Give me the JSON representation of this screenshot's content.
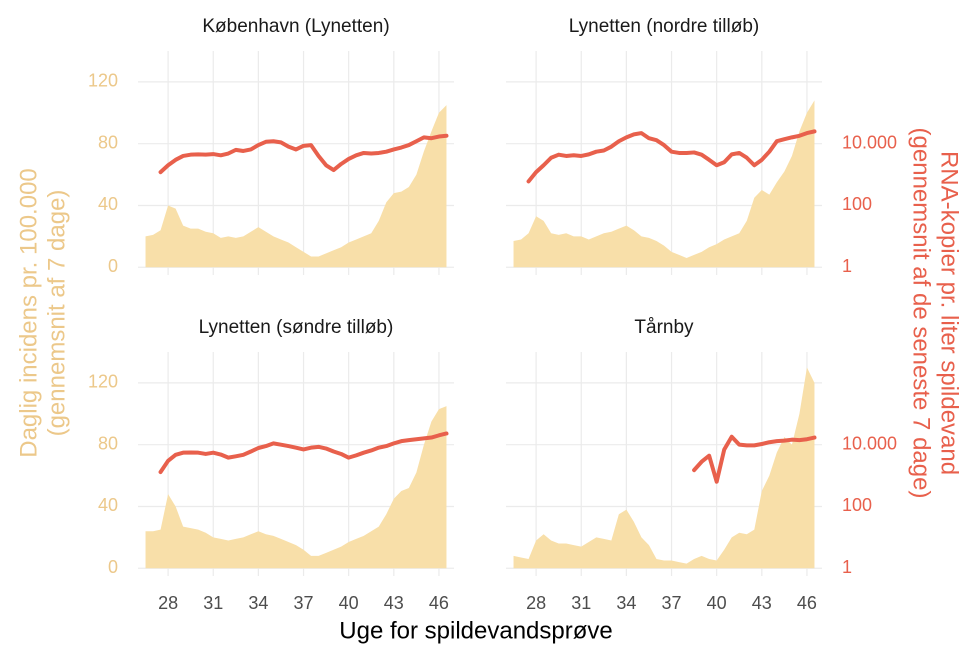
{
  "chart_data": [
    {
      "type": "area-line",
      "title": "København (Lynetten)",
      "x": [
        26.5,
        27,
        27.5,
        28,
        28.5,
        29,
        29.5,
        30,
        30.5,
        31,
        31.5,
        32,
        32.5,
        33,
        33.5,
        34,
        34.5,
        35,
        35.5,
        36,
        36.5,
        37,
        37.5,
        38,
        38.5,
        39,
        39.5,
        40,
        40.5,
        41,
        41.5,
        42,
        42.5,
        43,
        43.5,
        44,
        44.5,
        45,
        45.5,
        46,
        46.5
      ],
      "xlim": [
        26,
        47
      ],
      "xticks": [
        28,
        31,
        34,
        37,
        40,
        43,
        46
      ],
      "ylim": [
        -5,
        140
      ],
      "yticks": [
        0,
        40,
        80,
        120
      ],
      "y2lim": [
        0.56,
        10000000
      ],
      "y2log": true,
      "y2ticks": [
        1,
        100,
        {
          "value": 10000,
          "label": "10.000"
        }
      ],
      "series": [
        {
          "type": "area",
          "color": "#f8dfa9",
          "values": [
            20,
            21,
            24,
            40,
            38,
            27,
            25,
            25,
            23,
            22,
            19,
            20,
            19,
            20,
            23,
            26,
            23,
            20,
            18,
            16,
            13,
            10,
            7,
            7,
            9,
            11,
            13,
            16,
            18,
            20,
            22,
            30,
            42,
            48,
            49,
            52,
            60,
            75,
            88,
            100,
            105
          ]
        },
        {
          "type": "line",
          "axis": "y2",
          "color": "#e8604c",
          "values": [
            null,
            null,
            1200,
            2000,
            3000,
            4000,
            4400,
            4500,
            4400,
            4600,
            4200,
            4800,
            6300,
            5800,
            6500,
            9000,
            11500,
            12000,
            11000,
            8000,
            6500,
            8500,
            9000,
            4000,
            2000,
            1400,
            2200,
            3200,
            4200,
            5000,
            4800,
            5000,
            5500,
            6500,
            7500,
            9000,
            12000,
            16000,
            15000,
            17000,
            18000
          ]
        }
      ]
    },
    {
      "type": "area-line",
      "title": "Lynetten (nordre tilløb)",
      "x": [
        26.5,
        27,
        27.5,
        28,
        28.5,
        29,
        29.5,
        30,
        30.5,
        31,
        31.5,
        32,
        32.5,
        33,
        33.5,
        34,
        34.5,
        35,
        35.5,
        36,
        36.5,
        37,
        37.5,
        38,
        38.5,
        39,
        39.5,
        40,
        40.5,
        41,
        41.5,
        42,
        42.5,
        43,
        43.5,
        44,
        44.5,
        45,
        45.5,
        46,
        46.5
      ],
      "xlim": [
        26,
        47
      ],
      "xticks": [
        28,
        31,
        34,
        37,
        40,
        43,
        46
      ],
      "ylim": [
        -5,
        140
      ],
      "yticks": [
        0,
        40,
        80,
        120
      ],
      "y2lim": [
        0.56,
        10000000
      ],
      "y2log": true,
      "y2ticks": [
        1,
        100,
        {
          "value": 10000,
          "label": "10.000"
        }
      ],
      "series": [
        {
          "type": "area",
          "color": "#f8dfa9",
          "values": [
            17,
            18,
            22,
            33,
            30,
            22,
            21,
            22,
            20,
            20,
            18,
            20,
            22,
            23,
            25,
            27,
            24,
            20,
            19,
            17,
            14,
            10,
            8,
            6,
            8,
            10,
            13,
            15,
            18,
            20,
            22,
            30,
            45,
            50,
            47,
            55,
            62,
            72,
            88,
            100,
            108
          ]
        },
        {
          "type": "line",
          "axis": "y2",
          "color": "#e8604c",
          "values": [
            null,
            null,
            600,
            1200,
            2000,
            3500,
            4400,
            4000,
            4200,
            4000,
            4500,
            5500,
            6000,
            8000,
            12000,
            16000,
            20000,
            22000,
            15000,
            13000,
            9000,
            5500,
            5000,
            5000,
            5200,
            4400,
            3000,
            2000,
            2500,
            4500,
            5000,
            3500,
            2000,
            3000,
            5500,
            12000,
            14000,
            16000,
            18000,
            22000,
            25000
          ]
        }
      ]
    },
    {
      "type": "area-line",
      "title": "Lynetten (søndre tilløb)",
      "x": [
        26.5,
        27,
        27.5,
        28,
        28.5,
        29,
        29.5,
        30,
        30.5,
        31,
        31.5,
        32,
        32.5,
        33,
        33.5,
        34,
        34.5,
        35,
        35.5,
        36,
        36.5,
        37,
        37.5,
        38,
        38.5,
        39,
        39.5,
        40,
        40.5,
        41,
        41.5,
        42,
        42.5,
        43,
        43.5,
        44,
        44.5,
        45,
        45.5,
        46,
        46.5
      ],
      "xlim": [
        26,
        47
      ],
      "xticks": [
        28,
        31,
        34,
        37,
        40,
        43,
        46
      ],
      "ylim": [
        -5,
        140
      ],
      "yticks": [
        0,
        40,
        80,
        120
      ],
      "y2lim": [
        0.56,
        10000000
      ],
      "y2log": true,
      "y2ticks": [
        1,
        100,
        {
          "value": 10000,
          "label": "10.000"
        }
      ],
      "series": [
        {
          "type": "area",
          "color": "#f8dfa9",
          "values": [
            24,
            24,
            25,
            48,
            40,
            27,
            26,
            25,
            23,
            20,
            19,
            18,
            19,
            20,
            22,
            24,
            22,
            21,
            19,
            17,
            15,
            12,
            8,
            8,
            10,
            12,
            14,
            17,
            19,
            21,
            24,
            27,
            35,
            45,
            50,
            52,
            62,
            80,
            95,
            103,
            105
          ]
        },
        {
          "type": "line",
          "axis": "y2",
          "color": "#e8604c",
          "values": [
            null,
            null,
            1300,
            3000,
            4700,
            5500,
            5600,
            5500,
            5000,
            5500,
            4800,
            3800,
            4200,
            4700,
            6000,
            7800,
            9000,
            11000,
            10000,
            9000,
            8000,
            7000,
            8000,
            8500,
            7500,
            6000,
            5000,
            3800,
            4500,
            5500,
            6500,
            8000,
            9000,
            11000,
            13000,
            14000,
            15000,
            16000,
            17000,
            20000,
            23000
          ]
        }
      ]
    },
    {
      "type": "area-line",
      "title": "Tårnby",
      "x": [
        26.5,
        27,
        27.5,
        28,
        28.5,
        29,
        29.5,
        30,
        30.5,
        31,
        31.5,
        32,
        32.5,
        33,
        33.5,
        34,
        34.5,
        35,
        35.5,
        36,
        36.5,
        37,
        37.5,
        38,
        38.5,
        39,
        39.5,
        40,
        40.5,
        41,
        41.5,
        42,
        42.5,
        43,
        43.5,
        44,
        44.5,
        45,
        45.5,
        46,
        46.5
      ],
      "xlim": [
        26,
        47
      ],
      "xticks": [
        28,
        31,
        34,
        37,
        40,
        43,
        46
      ],
      "ylim": [
        -5,
        140
      ],
      "yticks": [
        0,
        40,
        80,
        120
      ],
      "y2lim": [
        0.56,
        10000000
      ],
      "y2log": true,
      "y2ticks": [
        1,
        100,
        {
          "value": 10000,
          "label": "10.000"
        }
      ],
      "series": [
        {
          "type": "area",
          "color": "#f8dfa9",
          "values": [
            8,
            7,
            6,
            18,
            22,
            18,
            16,
            16,
            15,
            14,
            17,
            20,
            19,
            18,
            35,
            38,
            30,
            20,
            15,
            6,
            5,
            5,
            4,
            3,
            6,
            8,
            6,
            5,
            12,
            20,
            23,
            22,
            25,
            50,
            60,
            75,
            85,
            80,
            100,
            130,
            120
          ]
        },
        {
          "type": "line",
          "axis": "y2",
          "color": "#e8604c",
          "values": [
            null,
            null,
            null,
            null,
            null,
            null,
            null,
            null,
            null,
            null,
            null,
            null,
            null,
            null,
            null,
            null,
            null,
            null,
            null,
            null,
            null,
            null,
            null,
            null,
            1500,
            2800,
            4400,
            630,
            6900,
            18000,
            10000,
            9500,
            9500,
            10500,
            12000,
            13000,
            13500,
            14500,
            14000,
            15000,
            17000
          ]
        }
      ]
    }
  ],
  "xlabel": "Uge for spildevandsprøve",
  "ylabel": [
    "Daglig incidens pr. 100.000",
    "(gennemsnit af 7 dage)"
  ],
  "y2label": [
    "RNA-kopier pr. liter spildevand",
    "(gennemsnit af de seneste 7 dage)"
  ]
}
